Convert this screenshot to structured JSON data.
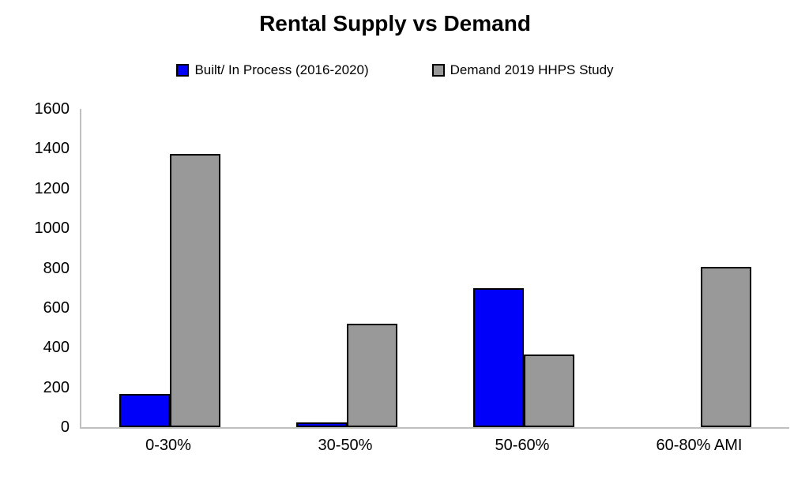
{
  "title": "Rental Supply vs Demand",
  "chart_data": {
    "type": "bar",
    "title": "Rental Supply vs Demand",
    "categories": [
      "0-30%",
      "30-50%",
      "50-60%",
      "60-80% AMI"
    ],
    "series": [
      {
        "name": "Built/ In Process (2016-2020)",
        "color": "#0000FA",
        "values": [
          165,
          25,
          700,
          0
        ]
      },
      {
        "name": "Demand 2019 HHPS Study",
        "color": "#999999",
        "values": [
          1375,
          520,
          365,
          805
        ]
      }
    ],
    "xlabel": "",
    "ylabel": "",
    "ylim": [
      0,
      1600
    ],
    "yticks": [
      0,
      200,
      400,
      600,
      800,
      1000,
      1200,
      1400,
      1600
    ],
    "grid": false,
    "legend_position": "top",
    "bar_border_color": "#000000",
    "axis_line_color": "#BFBFBF",
    "background_color": "#FFFFFF",
    "text_color": "#000000"
  }
}
